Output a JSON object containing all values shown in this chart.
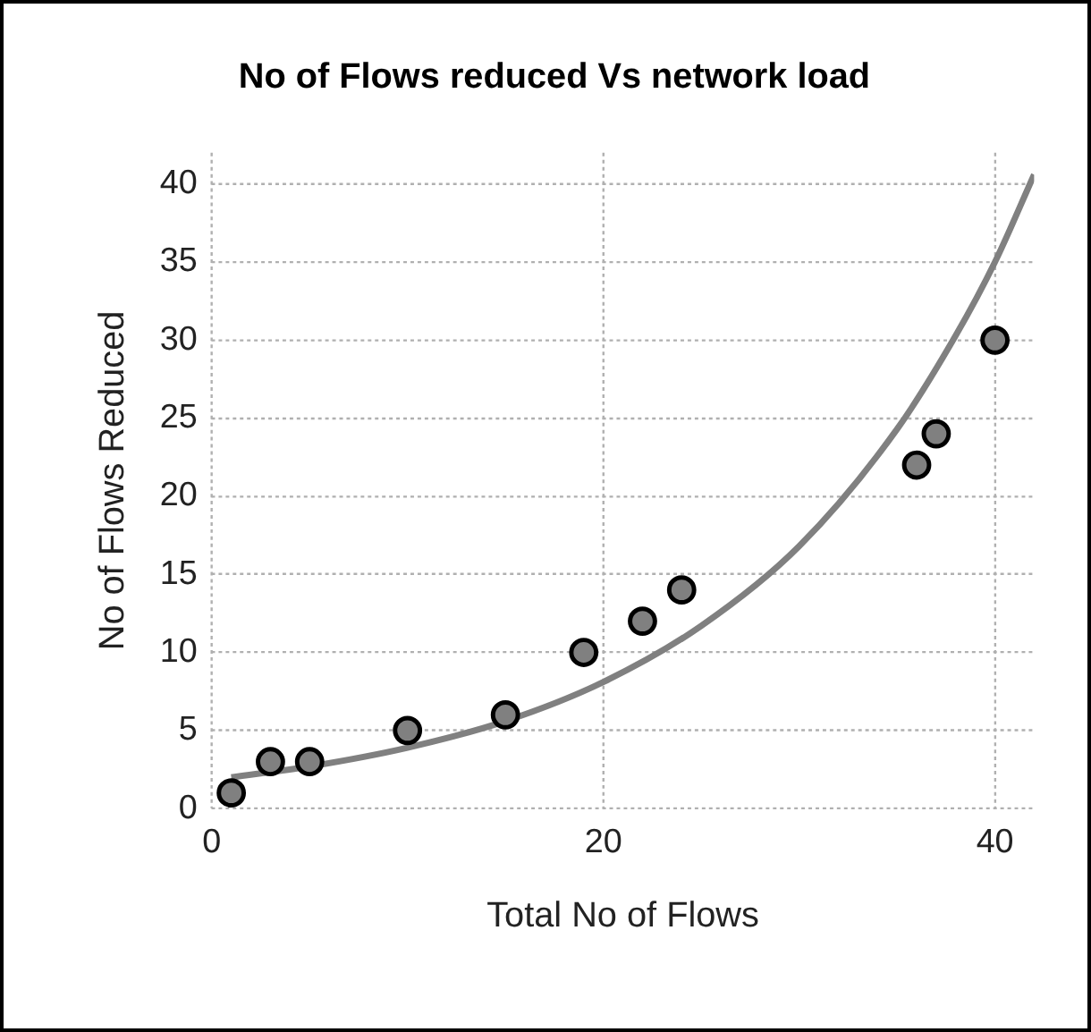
{
  "chart_data": {
    "type": "scatter",
    "title": "No of Flows reduced Vs network load",
    "xlabel": "Total No of Flows",
    "ylabel": "No of Flows Reduced",
    "xlim": [
      0,
      42
    ],
    "ylim": [
      0,
      42
    ],
    "xticks": [
      0,
      20,
      40
    ],
    "yticks": [
      0,
      5,
      10,
      15,
      20,
      25,
      30,
      35,
      40
    ],
    "grid": true,
    "marker": "circle",
    "series": [
      {
        "type": "line",
        "marker": "none",
        "color": "#808080",
        "x": [
          1,
          5,
          10,
          15,
          20,
          25,
          30,
          35,
          38,
          40,
          42
        ],
        "values": [
          2.0,
          2.7,
          3.9,
          5.6,
          8.1,
          11.7,
          16.8,
          24.3,
          30.3,
          35.0,
          40.6
        ]
      },
      {
        "color": "#808080",
        "x": [
          1,
          3,
          5,
          10,
          15,
          19,
          22,
          24,
          36,
          37,
          40
        ],
        "values": [
          1,
          3,
          3,
          5,
          6,
          10,
          12,
          14,
          22,
          24,
          30
        ]
      }
    ]
  }
}
